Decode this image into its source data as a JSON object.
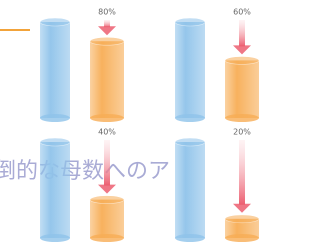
{
  "caption": "倒的な母数へのア",
  "chart_data": [
    {
      "type": "bar",
      "values": [
        100,
        80
      ],
      "value_labels": [
        null,
        "80%"
      ],
      "colors": [
        "#8fc3ea",
        "#f7ad55"
      ],
      "ylim": [
        0,
        100
      ]
    },
    {
      "type": "bar",
      "values": [
        100,
        60
      ],
      "value_labels": [
        null,
        "60%"
      ],
      "colors": [
        "#8fc3ea",
        "#f7ad55"
      ],
      "ylim": [
        0,
        100
      ]
    },
    {
      "type": "bar",
      "values": [
        100,
        40
      ],
      "value_labels": [
        null,
        "40%"
      ],
      "colors": [
        "#8fc3ea",
        "#f7ad55"
      ],
      "ylim": [
        0,
        100
      ]
    },
    {
      "type": "bar",
      "values": [
        100,
        20
      ],
      "value_labels": [
        null,
        "20%"
      ],
      "colors": [
        "#8fc3ea",
        "#f7ad55"
      ],
      "ylim": [
        0,
        100
      ]
    }
  ]
}
